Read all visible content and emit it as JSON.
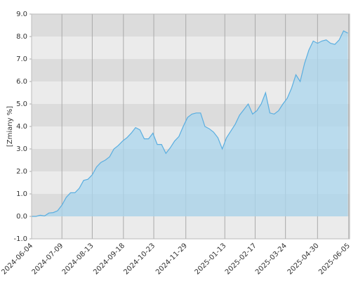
{
  "chart_data": {
    "type": "area",
    "ylabel": "[Zmiany %]",
    "x": [
      "2024-06-04",
      "2024-06-09",
      "2024-06-14",
      "2024-06-19",
      "2024-06-24",
      "2024-06-29",
      "2024-07-04",
      "2024-07-09",
      "2024-07-14",
      "2024-07-19",
      "2024-07-24",
      "2024-07-29",
      "2024-08-03",
      "2024-08-08",
      "2024-08-13",
      "2024-08-18",
      "2024-08-23",
      "2024-08-28",
      "2024-09-02",
      "2024-09-07",
      "2024-09-12",
      "2024-09-17",
      "2024-09-22",
      "2024-09-27",
      "2024-10-02",
      "2024-10-07",
      "2024-10-12",
      "2024-10-17",
      "2024-10-22",
      "2024-10-27",
      "2024-11-01",
      "2024-11-06",
      "2024-11-11",
      "2024-11-16",
      "2024-11-21",
      "2024-11-26",
      "2024-12-01",
      "2024-12-06",
      "2024-12-11",
      "2024-12-16",
      "2024-12-21",
      "2024-12-26",
      "2024-12-31",
      "2025-01-05",
      "2025-01-10",
      "2025-01-15",
      "2025-01-20",
      "2025-01-25",
      "2025-01-30",
      "2025-02-04",
      "2025-02-09",
      "2025-02-14",
      "2025-02-19",
      "2025-02-24",
      "2025-03-01",
      "2025-03-06",
      "2025-03-11",
      "2025-03-16",
      "2025-03-21",
      "2025-03-26",
      "2025-03-31",
      "2025-04-05",
      "2025-04-10",
      "2025-04-15",
      "2025-04-20",
      "2025-04-25",
      "2025-04-30",
      "2025-05-05",
      "2025-05-10",
      "2025-05-15",
      "2025-05-20",
      "2025-05-25",
      "2025-05-30",
      "2025-06-04"
    ],
    "values": [
      0.0,
      0.0,
      0.05,
      0.02,
      0.15,
      0.17,
      0.25,
      0.5,
      0.85,
      1.05,
      1.05,
      1.25,
      1.6,
      1.65,
      1.85,
      2.2,
      2.4,
      2.5,
      2.65,
      3.0,
      3.15,
      3.35,
      3.5,
      3.7,
      3.95,
      3.85,
      3.45,
      3.45,
      3.7,
      3.2,
      3.2,
      2.8,
      3.05,
      3.35,
      3.55,
      4.0,
      4.4,
      4.55,
      4.6,
      4.6,
      4.0,
      3.9,
      3.75,
      3.5,
      3.0,
      3.5,
      3.8,
      4.1,
      4.5,
      4.75,
      5.0,
      4.55,
      4.7,
      5.0,
      5.5,
      4.6,
      4.55,
      4.7,
      5.0,
      5.25,
      5.7,
      6.3,
      6.0,
      6.8,
      7.4,
      7.8,
      7.7,
      7.8,
      7.85,
      7.7,
      7.65,
      7.85,
      8.25,
      8.15
    ],
    "color": "#5aaee0",
    "fill": "#a9d6ee",
    "xlim": [
      "2024-06-04",
      "2025-06-06"
    ],
    "xticks": [
      "2024-06-04",
      "2024-07-09",
      "2024-08-13",
      "2024-09-18",
      "2024-10-23",
      "2024-11-29",
      "2025-01-13",
      "2025-02-17",
      "2025-03-24",
      "2025-04-30",
      "2025-06-05"
    ],
    "ylim": [
      -1,
      9
    ],
    "yticks": [
      {
        "value": -1,
        "label": "-1.0"
      },
      {
        "value": 0,
        "label": "0.0"
      },
      {
        "value": 1,
        "label": "1.0"
      },
      {
        "value": 2,
        "label": "2.0"
      },
      {
        "value": 3,
        "label": "3.0"
      },
      {
        "value": 4,
        "label": "4.0"
      },
      {
        "value": 5,
        "label": "5.0"
      },
      {
        "value": 6,
        "label": "6.0"
      },
      {
        "value": 7,
        "label": "7.0"
      },
      {
        "value": 8,
        "label": "8.0"
      },
      {
        "value": 9,
        "label": "9.0"
      }
    ],
    "grid": true,
    "band_colors": [
      "#ebebeb",
      "#dcdcdc"
    ]
  }
}
